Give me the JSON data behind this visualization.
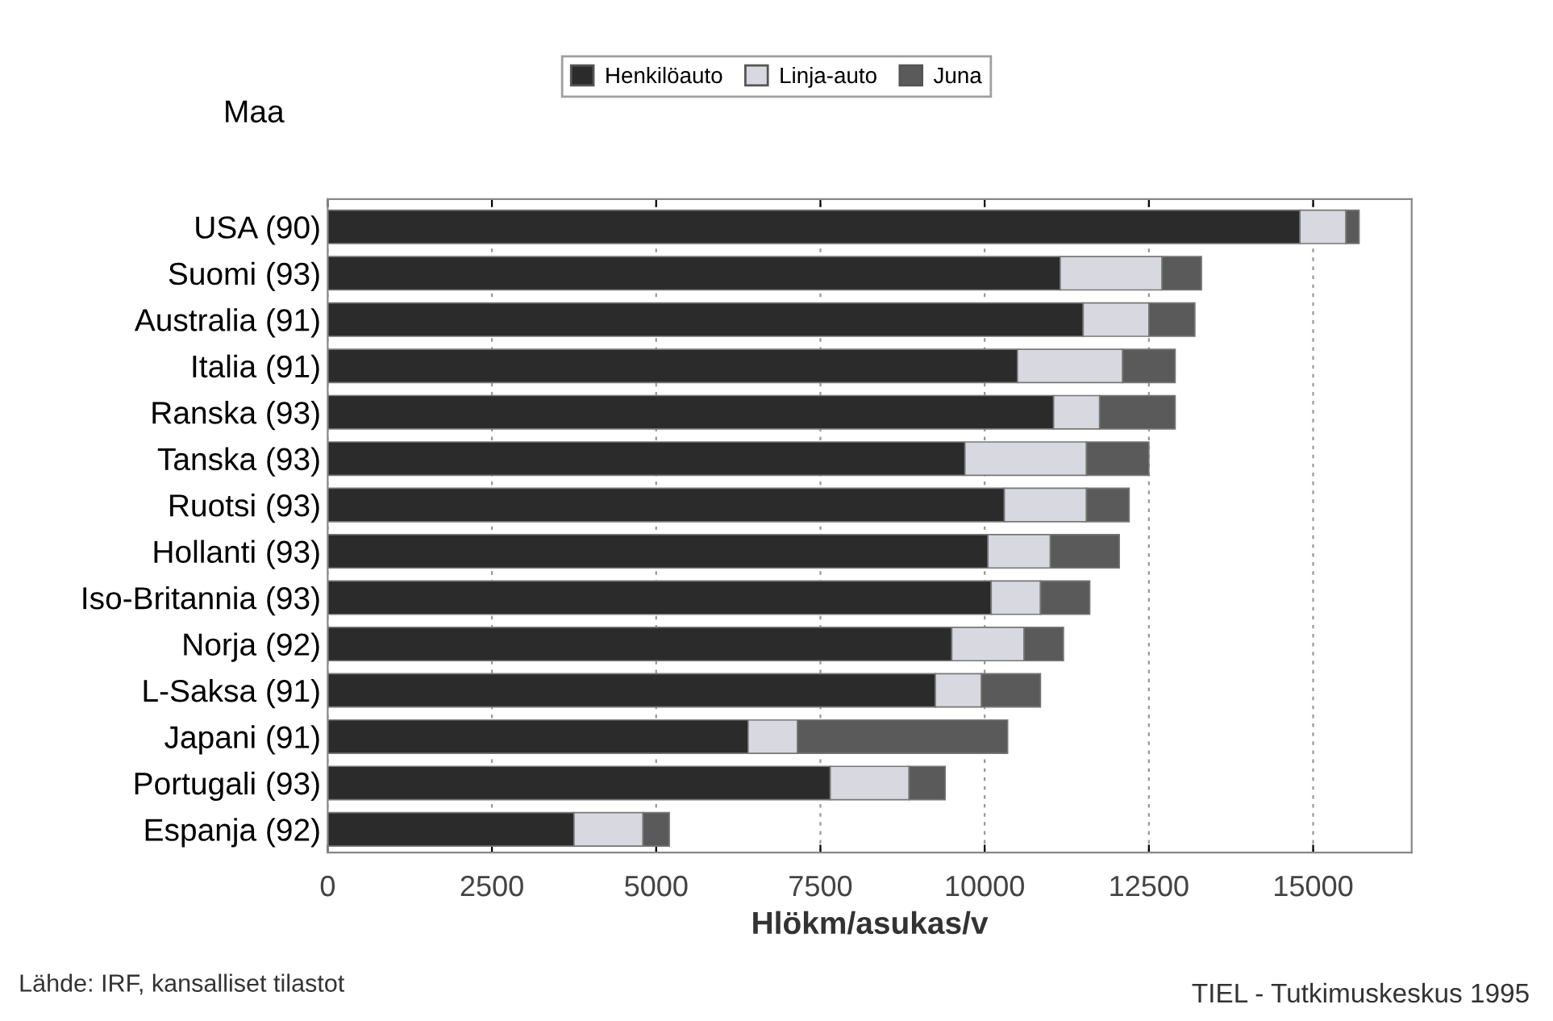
{
  "chart_data": {
    "type": "bar",
    "orientation": "horizontal",
    "stacked": true,
    "ylabel": "Maa",
    "xlabel": "Hlökm/asukas/v",
    "categories": [
      "USA (90)",
      "Suomi (93)",
      "Australia (91)",
      "Italia (91)",
      "Ranska (93)",
      "Tanska (93)",
      "Ruotsi (93)",
      "Hollanti (93)",
      "Iso-Britannia (93)",
      "Norja (92)",
      "L-Saksa (91)",
      "Japani (91)",
      "Portugali (93)",
      "Espanja (92)"
    ],
    "series": [
      {
        "name": "Henkilöauto",
        "color": "#2b2b2b",
        "values": [
          14800,
          11150,
          11500,
          10500,
          11050,
          9700,
          10300,
          10050,
          10100,
          9500,
          9250,
          6400,
          7650,
          3750
        ]
      },
      {
        "name": "Linja-auto",
        "color": "#d8d8e0",
        "values": [
          700,
          1550,
          1000,
          1600,
          700,
          1850,
          1250,
          950,
          750,
          1100,
          700,
          750,
          1200,
          1050
        ]
      },
      {
        "name": "Juna",
        "color": "#5a5a5a",
        "values": [
          200,
          600,
          700,
          800,
          1150,
          950,
          650,
          1050,
          750,
          600,
          900,
          3200,
          550,
          400
        ]
      }
    ],
    "xlim": [
      0,
      16500
    ],
    "xticks": [
      0,
      2500,
      5000,
      7500,
      10000,
      12500,
      15000
    ],
    "grid": "x",
    "legend": "top",
    "annotations": [
      "Lähde: IRF, kansalliset tilastot",
      "TIEL - Tutkimuskeskus 1995"
    ]
  }
}
